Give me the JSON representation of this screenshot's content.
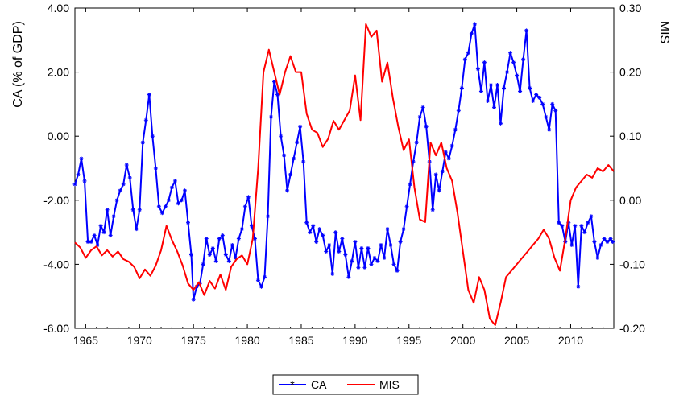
{
  "chart_data": {
    "type": "line",
    "title": "",
    "xlabel": "",
    "ylabel_left": "CA (% of GDP)",
    "ylabel_right": "MIS",
    "x_ticks": [
      "1965",
      "1970",
      "1975",
      "1980",
      "1985",
      "1990",
      "1995",
      "2000",
      "2005",
      "2010"
    ],
    "y_left_ticks": [
      "-6.00",
      "-4.00",
      "-2.00",
      "0.00",
      "2.00",
      "4.00"
    ],
    "y_right_ticks": [
      "-0.20",
      "-0.10",
      "0.00",
      "0.10",
      "0.20",
      "0.30"
    ],
    "y_left_range": [
      -6,
      4
    ],
    "y_right_range": [
      -0.2,
      0.3
    ],
    "x_range": [
      1964.0,
      2014.0
    ],
    "grid": false,
    "legend_position": "bottom-center",
    "series": [
      {
        "name": "CA",
        "axis": "left",
        "color": "#0000ff",
        "marker": "asterisk",
        "points": [
          [
            1964.0,
            -1.5
          ],
          [
            1964.3,
            -1.2
          ],
          [
            1964.6,
            -0.7
          ],
          [
            1964.9,
            -1.4
          ],
          [
            1965.2,
            -3.3
          ],
          [
            1965.5,
            -3.3
          ],
          [
            1965.8,
            -3.1
          ],
          [
            1966.1,
            -3.4
          ],
          [
            1966.4,
            -2.8
          ],
          [
            1966.7,
            -3.0
          ],
          [
            1967.0,
            -2.3
          ],
          [
            1967.3,
            -3.1
          ],
          [
            1967.6,
            -2.5
          ],
          [
            1967.9,
            -2.0
          ],
          [
            1968.2,
            -1.7
          ],
          [
            1968.5,
            -1.5
          ],
          [
            1968.8,
            -0.9
          ],
          [
            1969.1,
            -1.3
          ],
          [
            1969.4,
            -2.3
          ],
          [
            1969.7,
            -2.9
          ],
          [
            1970.0,
            -2.3
          ],
          [
            1970.3,
            -0.2
          ],
          [
            1970.6,
            0.5
          ],
          [
            1970.9,
            1.3
          ],
          [
            1971.2,
            0.0
          ],
          [
            1971.5,
            -1.0
          ],
          [
            1971.8,
            -2.2
          ],
          [
            1972.1,
            -2.4
          ],
          [
            1972.4,
            -2.2
          ],
          [
            1972.7,
            -2.0
          ],
          [
            1973.0,
            -1.6
          ],
          [
            1973.3,
            -1.4
          ],
          [
            1973.6,
            -2.1
          ],
          [
            1973.9,
            -2.0
          ],
          [
            1974.2,
            -1.7
          ],
          [
            1974.5,
            -2.7
          ],
          [
            1974.8,
            -3.7
          ],
          [
            1975.0,
            -5.1
          ],
          [
            1975.3,
            -4.7
          ],
          [
            1975.6,
            -4.6
          ],
          [
            1975.9,
            -4.0
          ],
          [
            1976.2,
            -3.2
          ],
          [
            1976.5,
            -3.7
          ],
          [
            1976.8,
            -3.5
          ],
          [
            1977.1,
            -3.9
          ],
          [
            1977.4,
            -3.2
          ],
          [
            1977.7,
            -3.1
          ],
          [
            1978.0,
            -3.7
          ],
          [
            1978.3,
            -3.9
          ],
          [
            1978.6,
            -3.4
          ],
          [
            1978.9,
            -3.8
          ],
          [
            1979.2,
            -3.2
          ],
          [
            1979.5,
            -2.9
          ],
          [
            1979.8,
            -2.2
          ],
          [
            1980.1,
            -1.9
          ],
          [
            1980.4,
            -2.8
          ],
          [
            1980.7,
            -3.2
          ],
          [
            1981.0,
            -4.5
          ],
          [
            1981.3,
            -4.7
          ],
          [
            1981.6,
            -4.4
          ],
          [
            1981.9,
            -2.5
          ],
          [
            1982.2,
            0.6
          ],
          [
            1982.5,
            1.7
          ],
          [
            1982.8,
            1.3
          ],
          [
            1983.1,
            0.0
          ],
          [
            1983.4,
            -0.6
          ],
          [
            1983.7,
            -1.7
          ],
          [
            1984.0,
            -1.2
          ],
          [
            1984.3,
            -0.7
          ],
          [
            1984.6,
            -0.2
          ],
          [
            1984.9,
            0.3
          ],
          [
            1985.2,
            -0.8
          ],
          [
            1985.5,
            -2.7
          ],
          [
            1985.8,
            -3.0
          ],
          [
            1986.1,
            -2.8
          ],
          [
            1986.4,
            -3.3
          ],
          [
            1986.7,
            -2.9
          ],
          [
            1987.0,
            -3.1
          ],
          [
            1987.3,
            -3.6
          ],
          [
            1987.6,
            -3.4
          ],
          [
            1987.9,
            -4.3
          ],
          [
            1988.2,
            -3.0
          ],
          [
            1988.5,
            -3.6
          ],
          [
            1988.8,
            -3.2
          ],
          [
            1989.1,
            -3.7
          ],
          [
            1989.4,
            -4.4
          ],
          [
            1989.7,
            -3.9
          ],
          [
            1990.0,
            -3.3
          ],
          [
            1990.3,
            -4.1
          ],
          [
            1990.6,
            -3.5
          ],
          [
            1990.9,
            -4.1
          ],
          [
            1991.2,
            -3.5
          ],
          [
            1991.5,
            -4.0
          ],
          [
            1991.8,
            -3.8
          ],
          [
            1992.1,
            -3.9
          ],
          [
            1992.4,
            -3.4
          ],
          [
            1992.7,
            -3.8
          ],
          [
            1993.0,
            -2.9
          ],
          [
            1993.3,
            -3.4
          ],
          [
            1993.6,
            -4.0
          ],
          [
            1993.9,
            -4.2
          ],
          [
            1994.2,
            -3.3
          ],
          [
            1994.5,
            -2.9
          ],
          [
            1994.8,
            -2.2
          ],
          [
            1995.1,
            -1.5
          ],
          [
            1995.4,
            -0.8
          ],
          [
            1995.7,
            -0.2
          ],
          [
            1996.0,
            0.6
          ],
          [
            1996.3,
            0.9
          ],
          [
            1996.6,
            0.3
          ],
          [
            1996.9,
            -0.8
          ],
          [
            1997.2,
            -2.3
          ],
          [
            1997.5,
            -1.2
          ],
          [
            1997.8,
            -1.7
          ],
          [
            1998.1,
            -1.1
          ],
          [
            1998.4,
            -0.5
          ],
          [
            1998.7,
            -0.7
          ],
          [
            1999.0,
            -0.3
          ],
          [
            1999.3,
            0.2
          ],
          [
            1999.6,
            0.8
          ],
          [
            1999.9,
            1.5
          ],
          [
            2000.2,
            2.4
          ],
          [
            2000.5,
            2.6
          ],
          [
            2000.8,
            3.2
          ],
          [
            2001.1,
            3.5
          ],
          [
            2001.4,
            2.1
          ],
          [
            2001.7,
            1.4
          ],
          [
            2002.0,
            2.3
          ],
          [
            2002.3,
            1.1
          ],
          [
            2002.6,
            1.6
          ],
          [
            2002.9,
            0.9
          ],
          [
            2003.2,
            1.6
          ],
          [
            2003.5,
            0.4
          ],
          [
            2003.8,
            1.5
          ],
          [
            2004.1,
            2.0
          ],
          [
            2004.4,
            2.6
          ],
          [
            2004.7,
            2.3
          ],
          [
            2005.0,
            1.9
          ],
          [
            2005.3,
            1.4
          ],
          [
            2005.6,
            2.4
          ],
          [
            2005.9,
            3.3
          ],
          [
            2006.2,
            1.5
          ],
          [
            2006.5,
            1.1
          ],
          [
            2006.8,
            1.3
          ],
          [
            2007.1,
            1.2
          ],
          [
            2007.4,
            1.0
          ],
          [
            2007.7,
            0.6
          ],
          [
            2008.0,
            0.2
          ],
          [
            2008.3,
            1.0
          ],
          [
            2008.6,
            0.8
          ],
          [
            2008.9,
            -2.7
          ],
          [
            2009.2,
            -2.8
          ],
          [
            2009.5,
            -3.3
          ],
          [
            2009.8,
            -2.7
          ],
          [
            2010.1,
            -3.4
          ],
          [
            2010.4,
            -2.8
          ],
          [
            2010.7,
            -4.7
          ],
          [
            2011.0,
            -2.8
          ],
          [
            2011.3,
            -3.0
          ],
          [
            2011.6,
            -2.7
          ],
          [
            2011.9,
            -2.5
          ],
          [
            2012.2,
            -3.3
          ],
          [
            2012.5,
            -3.8
          ],
          [
            2012.8,
            -3.4
          ],
          [
            2013.1,
            -3.2
          ],
          [
            2013.4,
            -3.3
          ],
          [
            2013.7,
            -3.2
          ],
          [
            2013.9,
            -3.3
          ]
        ]
      },
      {
        "name": "MIS",
        "axis": "right",
        "color": "#ff0000",
        "marker": "none",
        "points": [
          [
            1964.0,
            -0.066
          ],
          [
            1964.5,
            -0.074
          ],
          [
            1965.0,
            -0.09
          ],
          [
            1965.5,
            -0.078
          ],
          [
            1966.0,
            -0.072
          ],
          [
            1966.5,
            -0.086
          ],
          [
            1967.0,
            -0.078
          ],
          [
            1967.5,
            -0.088
          ],
          [
            1968.0,
            -0.08
          ],
          [
            1968.5,
            -0.092
          ],
          [
            1969.0,
            -0.096
          ],
          [
            1969.5,
            -0.104
          ],
          [
            1970.0,
            -0.122
          ],
          [
            1970.5,
            -0.108
          ],
          [
            1971.0,
            -0.118
          ],
          [
            1971.5,
            -0.102
          ],
          [
            1972.0,
            -0.078
          ],
          [
            1972.5,
            -0.04
          ],
          [
            1973.0,
            -0.062
          ],
          [
            1973.5,
            -0.08
          ],
          [
            1974.0,
            -0.102
          ],
          [
            1974.5,
            -0.13
          ],
          [
            1975.0,
            -0.14
          ],
          [
            1975.5,
            -0.128
          ],
          [
            1976.0,
            -0.148
          ],
          [
            1976.5,
            -0.126
          ],
          [
            1977.0,
            -0.138
          ],
          [
            1977.5,
            -0.116
          ],
          [
            1978.0,
            -0.14
          ],
          [
            1978.5,
            -0.104
          ],
          [
            1979.0,
            -0.092
          ],
          [
            1979.5,
            -0.086
          ],
          [
            1980.0,
            -0.1
          ],
          [
            1980.5,
            -0.06
          ],
          [
            1981.0,
            0.05
          ],
          [
            1981.5,
            0.2
          ],
          [
            1982.0,
            0.235
          ],
          [
            1982.5,
            0.2
          ],
          [
            1983.0,
            0.165
          ],
          [
            1983.5,
            0.2
          ],
          [
            1984.0,
            0.225
          ],
          [
            1984.5,
            0.2
          ],
          [
            1985.0,
            0.2
          ],
          [
            1985.5,
            0.135
          ],
          [
            1986.0,
            0.11
          ],
          [
            1986.5,
            0.105
          ],
          [
            1987.0,
            0.083
          ],
          [
            1987.5,
            0.096
          ],
          [
            1988.0,
            0.124
          ],
          [
            1988.5,
            0.11
          ],
          [
            1989.0,
            0.125
          ],
          [
            1989.5,
            0.14
          ],
          [
            1990.0,
            0.195
          ],
          [
            1990.5,
            0.125
          ],
          [
            1991.0,
            0.275
          ],
          [
            1991.5,
            0.255
          ],
          [
            1992.0,
            0.265
          ],
          [
            1992.5,
            0.185
          ],
          [
            1993.0,
            0.215
          ],
          [
            1993.5,
            0.16
          ],
          [
            1994.0,
            0.115
          ],
          [
            1994.5,
            0.078
          ],
          [
            1995.0,
            0.095
          ],
          [
            1995.5,
            0.02
          ],
          [
            1996.0,
            -0.03
          ],
          [
            1996.5,
            -0.034
          ],
          [
            1997.0,
            0.09
          ],
          [
            1997.5,
            0.07
          ],
          [
            1998.0,
            0.09
          ],
          [
            1998.5,
            0.05
          ],
          [
            1999.0,
            0.03
          ],
          [
            1999.5,
            -0.02
          ],
          [
            2000.0,
            -0.08
          ],
          [
            2000.5,
            -0.14
          ],
          [
            2001.0,
            -0.16
          ],
          [
            2001.5,
            -0.12
          ],
          [
            2002.0,
            -0.14
          ],
          [
            2002.5,
            -0.185
          ],
          [
            2003.0,
            -0.195
          ],
          [
            2003.5,
            -0.16
          ],
          [
            2004.0,
            -0.12
          ],
          [
            2004.5,
            -0.11
          ],
          [
            2005.0,
            -0.1
          ],
          [
            2005.5,
            -0.09
          ],
          [
            2006.0,
            -0.08
          ],
          [
            2006.5,
            -0.07
          ],
          [
            2007.0,
            -0.06
          ],
          [
            2007.5,
            -0.046
          ],
          [
            2008.0,
            -0.06
          ],
          [
            2008.5,
            -0.09
          ],
          [
            2009.0,
            -0.11
          ],
          [
            2009.5,
            -0.06
          ],
          [
            2010.0,
            0.0
          ],
          [
            2010.5,
            0.02
          ],
          [
            2011.0,
            0.03
          ],
          [
            2011.5,
            0.04
          ],
          [
            2012.0,
            0.035
          ],
          [
            2012.5,
            0.05
          ],
          [
            2013.0,
            0.045
          ],
          [
            2013.5,
            0.055
          ],
          [
            2014.0,
            0.045
          ]
        ]
      }
    ]
  }
}
